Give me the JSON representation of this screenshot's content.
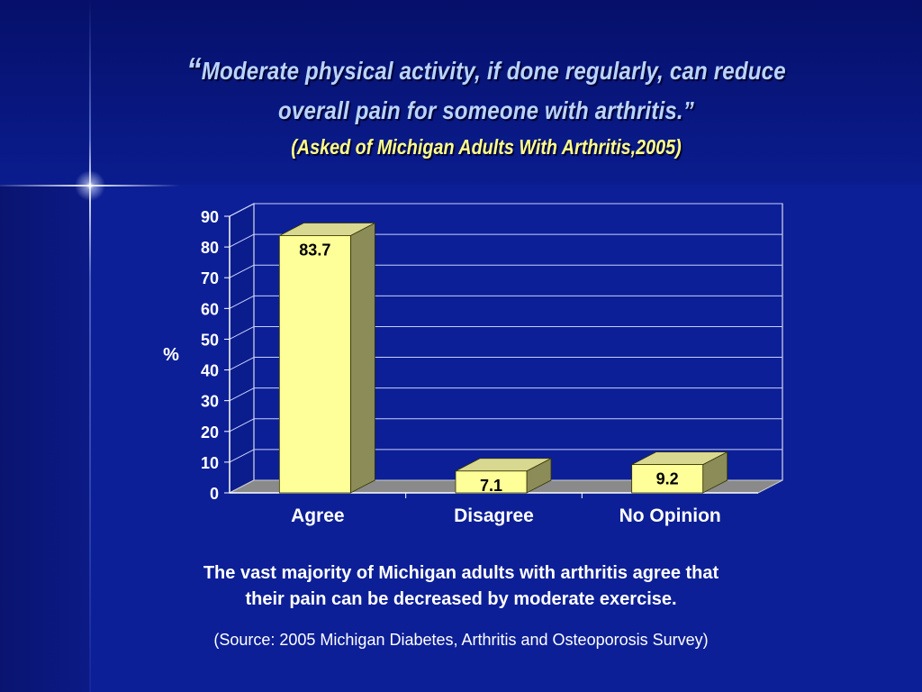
{
  "slide": {
    "title_quote_open": "“",
    "title_line1": "Moderate physical activity, if done regularly, can reduce",
    "title_line2": "overall pain for someone with arthritis.”",
    "subtitle": "(Asked of  Michigan Adults With Arthritis,2005)",
    "caption_line1": "The vast majority of Michigan adults with arthritis agree that",
    "caption_line2": "their pain can be decreased by moderate exercise.",
    "source": "(Source: 2005 Michigan Diabetes, Arthritis and Osteoporosis Survey)"
  },
  "colors": {
    "bar_front": "#ffff99",
    "bar_top": "#d8d890",
    "bar_side": "#8c8c58",
    "floor": "#8a8a8a",
    "plot_wall": "#0c1f96",
    "grid": "#c8d0ff",
    "title_text": "#b9d4ff",
    "subtitle_text": "#ffff88"
  },
  "chart_data": {
    "type": "bar",
    "categories": [
      "Agree",
      "Disagree",
      "No Opinion"
    ],
    "values": [
      83.7,
      7.1,
      9.2
    ],
    "data_labels": [
      "83.7",
      "7.1",
      "9.2"
    ],
    "title": "",
    "xlabel": "",
    "ylabel": "%",
    "ylim": [
      0,
      90
    ],
    "yticks": [
      0,
      10,
      20,
      30,
      40,
      50,
      60,
      70,
      80,
      90
    ],
    "grid": true,
    "legend": "none"
  }
}
